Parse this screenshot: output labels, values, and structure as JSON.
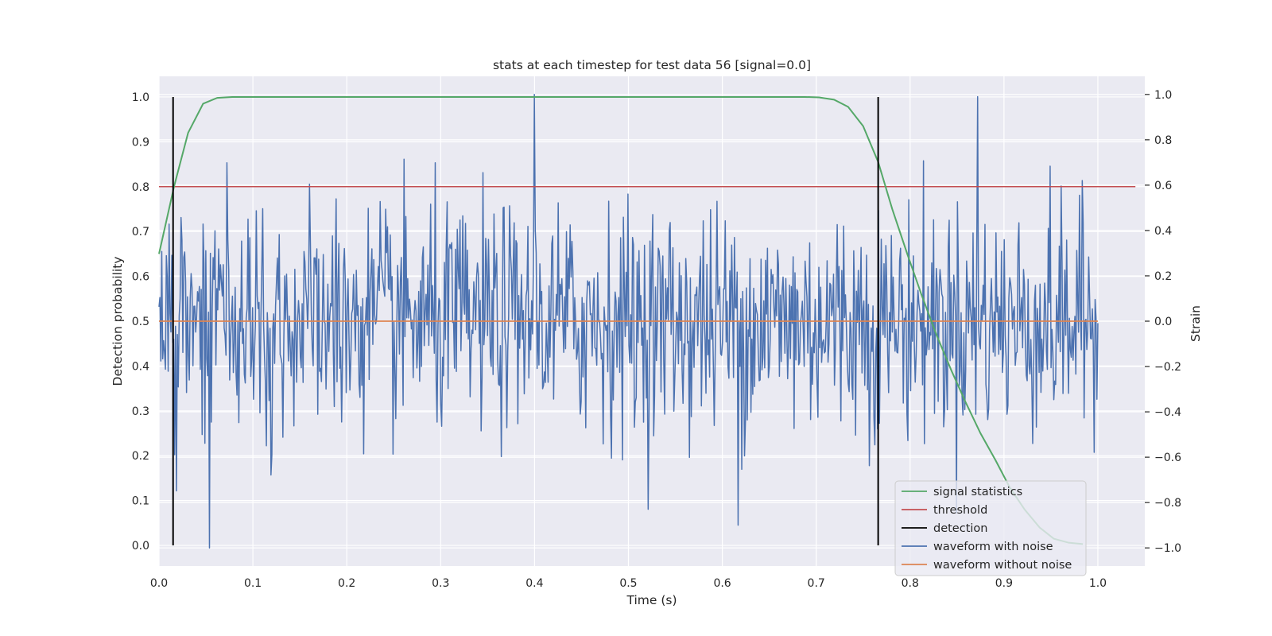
{
  "chart_data": {
    "type": "line",
    "title": "stats at each timestep for test data 56 [signal=0.0]",
    "xlabel": "Time (s)",
    "ylabel": "Detection probability",
    "y2label": "Strain",
    "xlim": [
      0.0,
      1.05
    ],
    "ylim": [
      -0.046,
      1.046
    ],
    "y2lim": [
      -1.08,
      1.08
    ],
    "xticks": [
      0.0,
      0.1,
      0.2,
      0.3,
      0.4,
      0.5,
      0.6,
      0.7,
      0.8,
      0.9,
      1.0
    ],
    "xtick_labels": [
      "0.0",
      "0.1",
      "0.2",
      "0.3",
      "0.4",
      "0.5",
      "0.6",
      "0.7",
      "0.8",
      "0.9",
      "1.0"
    ],
    "yticks": [
      0.0,
      0.1,
      0.2,
      0.3,
      0.4,
      0.5,
      0.6,
      0.7,
      0.8,
      0.9,
      1.0
    ],
    "ytick_labels": [
      "0.0",
      "0.1",
      "0.2",
      "0.3",
      "0.4",
      "0.5",
      "0.6",
      "0.7",
      "0.8",
      "0.9",
      "1.0"
    ],
    "y2ticks": [
      -1.0,
      -0.8,
      -0.6,
      -0.4,
      -0.2,
      0.0,
      0.2,
      0.4,
      0.6,
      0.8,
      1.0
    ],
    "y2tick_labels": [
      "−1.0",
      "−0.8",
      "−0.6",
      "−0.4",
      "−0.2",
      "0.0",
      "0.2",
      "0.4",
      "0.6",
      "0.8",
      "1.0"
    ],
    "grid": true,
    "legend_position": "lower-right",
    "colors": {
      "background": "#eaeaf2",
      "grid": "#ffffff",
      "signal_statistics": "#55a868",
      "threshold": "#c44e52",
      "detection": "#000000",
      "waveform_with_noise": "#4c72b0",
      "waveform_without_noise": "#dd8452"
    },
    "series": [
      {
        "name": "signal statistics",
        "axis": "left",
        "x": [
          0.0,
          0.016,
          0.031,
          0.047,
          0.062,
          0.078,
          0.094,
          0.109,
          0.125,
          0.141,
          0.156,
          0.172,
          0.188,
          0.203,
          0.219,
          0.234,
          0.25,
          0.266,
          0.281,
          0.297,
          0.312,
          0.328,
          0.344,
          0.359,
          0.375,
          0.391,
          0.406,
          0.422,
          0.438,
          0.453,
          0.469,
          0.484,
          0.5,
          0.516,
          0.531,
          0.547,
          0.562,
          0.578,
          0.594,
          0.609,
          0.625,
          0.641,
          0.656,
          0.672,
          0.688,
          0.703,
          0.719,
          0.734,
          0.75,
          0.766,
          0.781,
          0.797,
          0.812,
          0.828,
          0.844,
          0.859,
          0.875,
          0.891,
          0.906,
          0.922,
          0.938,
          0.953,
          0.969,
          0.984
        ],
        "y": [
          0.65,
          0.8,
          0.92,
          0.985,
          0.998,
          1.0,
          1.0,
          1.0,
          1.0,
          1.0,
          1.0,
          1.0,
          1.0,
          1.0,
          1.0,
          1.0,
          1.0,
          1.0,
          1.0,
          1.0,
          1.0,
          1.0,
          1.0,
          1.0,
          1.0,
          1.0,
          1.0,
          1.0,
          1.0,
          1.0,
          1.0,
          1.0,
          1.0,
          1.0,
          1.0,
          1.0,
          1.0,
          1.0,
          1.0,
          1.0,
          1.0,
          1.0,
          1.0,
          1.0,
          1.0,
          0.999,
          0.994,
          0.978,
          0.935,
          0.855,
          0.75,
          0.65,
          0.56,
          0.47,
          0.39,
          0.32,
          0.25,
          0.19,
          0.13,
          0.08,
          0.04,
          0.015,
          0.006,
          0.003
        ]
      },
      {
        "name": "threshold",
        "axis": "left",
        "x": [
          0.0,
          1.04
        ],
        "y": [
          0.8,
          0.8
        ]
      },
      {
        "name": "detection",
        "axis": "left",
        "segments": [
          {
            "x": 0.015,
            "y": [
              0.0,
              1.0
            ]
          },
          {
            "x": 0.766,
            "y": [
              0.0,
              1.0
            ]
          }
        ]
      },
      {
        "name": "waveform with noise",
        "axis": "right",
        "x_range": [
          0.0,
          1.0
        ],
        "samples": 1024,
        "mean": 0.0,
        "std_estimate": 0.25,
        "min": -1.0,
        "max": 1.0
      },
      {
        "name": "waveform without noise",
        "axis": "right",
        "x": [
          0.0,
          1.0
        ],
        "y": [
          0.0,
          0.0
        ]
      }
    ]
  }
}
